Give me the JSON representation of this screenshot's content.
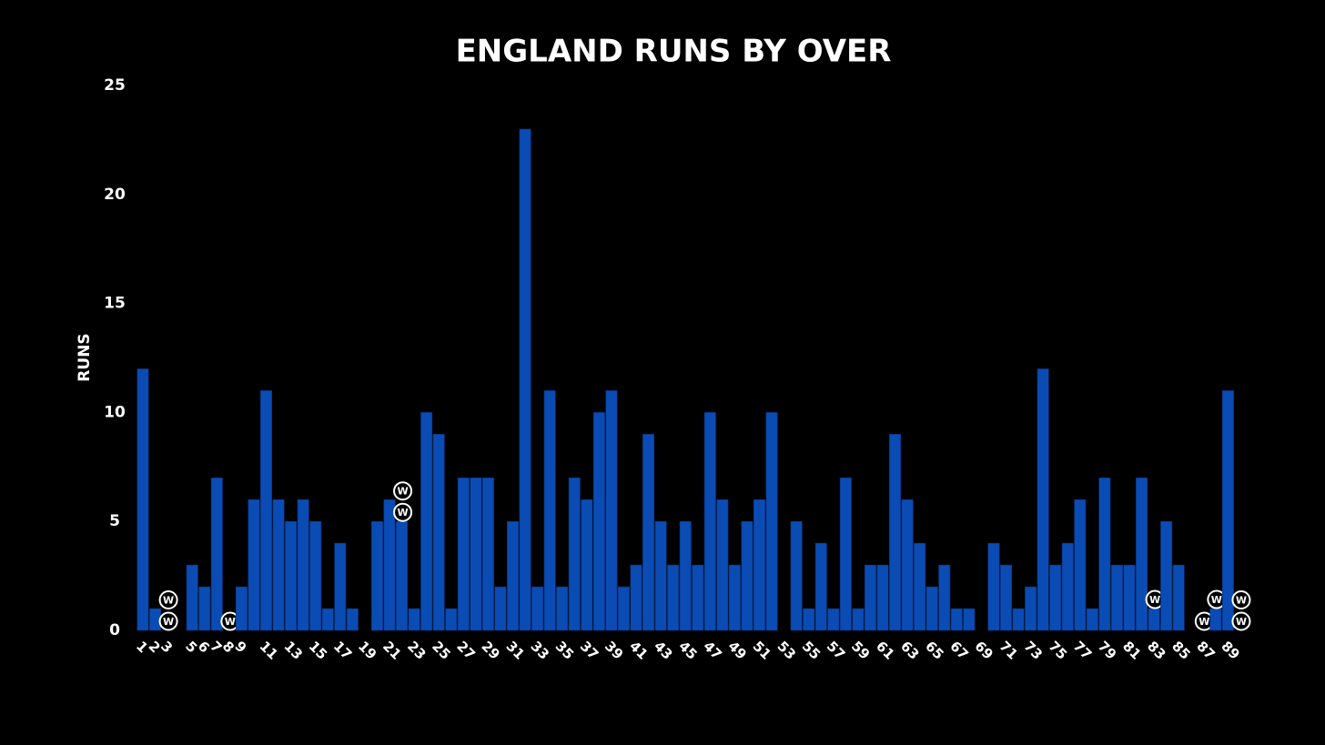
{
  "chart_data": {
    "type": "bar",
    "title": "ENGLAND RUNS BY OVER",
    "y_label": "RUNS",
    "categories": [
      "1",
      "2",
      "3",
      null,
      "5",
      "6",
      "7",
      "8",
      "9",
      null,
      "11",
      null,
      "13",
      null,
      "15",
      null,
      "17",
      null,
      "19",
      null,
      "21",
      null,
      "23",
      null,
      "25",
      null,
      "27",
      null,
      "29",
      null,
      "31",
      null,
      "33",
      null,
      "35",
      null,
      "37",
      null,
      "39",
      null,
      "41",
      null,
      "43",
      null,
      "45",
      null,
      "47",
      null,
      "49",
      null,
      "51",
      null,
      "53",
      null,
      "55",
      null,
      "57",
      null,
      "59",
      null,
      "61",
      null,
      "63",
      null,
      "65",
      null,
      "67",
      null,
      "69",
      null,
      "71",
      null,
      "73",
      null,
      "75",
      null,
      "77",
      null,
      "79",
      null,
      "81",
      null,
      "83",
      null,
      "85",
      null,
      "87",
      null,
      "89",
      null
    ],
    "values": [
      12,
      1,
      0,
      0,
      3,
      2,
      7,
      0,
      2,
      6,
      11,
      6,
      5,
      6,
      5,
      1,
      4,
      1,
      0,
      5,
      6,
      5,
      1,
      10,
      9,
      1,
      7,
      7,
      7,
      2,
      5,
      23,
      2,
      11,
      2,
      7,
      6,
      10,
      11,
      2,
      3,
      9,
      5,
      3,
      5,
      3,
      10,
      6,
      3,
      5,
      6,
      10,
      0,
      5,
      1,
      4,
      1,
      7,
      1,
      3,
      3,
      9,
      6,
      4,
      2,
      3,
      1,
      1,
      0,
      4,
      3,
      1,
      2,
      12,
      3,
      4,
      6,
      1,
      7,
      3,
      3,
      7,
      1,
      5,
      3,
      0,
      0,
      1,
      11,
      0
    ],
    "wickets": [
      0,
      0,
      2,
      0,
      0,
      0,
      0,
      1,
      0,
      0,
      0,
      0,
      0,
      0,
      0,
      0,
      0,
      0,
      0,
      0,
      0,
      2,
      0,
      0,
      0,
      0,
      0,
      0,
      0,
      0,
      0,
      0,
      0,
      0,
      0,
      0,
      0,
      0,
      0,
      0,
      0,
      0,
      0,
      0,
      0,
      0,
      0,
      0,
      0,
      0,
      0,
      0,
      0,
      0,
      0,
      0,
      0,
      0,
      0,
      0,
      0,
      0,
      0,
      0,
      0,
      0,
      0,
      0,
      0,
      0,
      0,
      0,
      0,
      0,
      0,
      0,
      0,
      0,
      0,
      0,
      0,
      0,
      1,
      0,
      0,
      0,
      1,
      1,
      0,
      2
    ],
    "wicket_label": "W",
    "color": "#0a4cb4",
    "ylim": [
      0,
      25
    ],
    "yticks": [
      0,
      5,
      10,
      15,
      20,
      25
    ],
    "grid": false
  }
}
